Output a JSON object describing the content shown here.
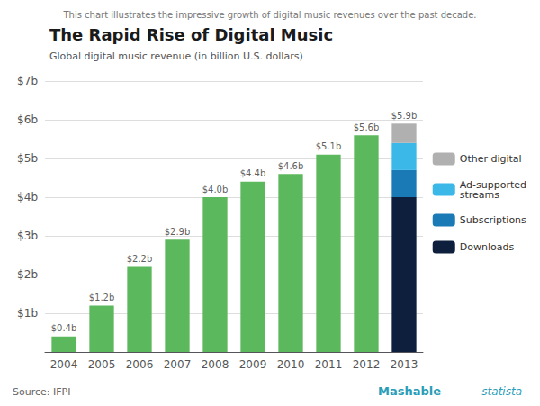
{
  "chart_data": {
    "type": "bar",
    "title": "The Rapid Rise of Digital Music",
    "subtitle": "This chart illustrates the impressive growth of digital music revenues over the past decade.",
    "ylabel": "Global digital music revenue (in billion U.S. dollars)",
    "categories": [
      "2004",
      "2005",
      "2006",
      "2007",
      "2008",
      "2009",
      "2010",
      "2011",
      "2012",
      "2013"
    ],
    "series": [
      {
        "color": "#5cb85c",
        "values": [
          0.4,
          1.2,
          2.2,
          2.9,
          4.0,
          4.4,
          4.6,
          5.1,
          5.6,
          null
        ]
      },
      {
        "name": "Downloads",
        "color": "#0d1f3c",
        "values": [
          null,
          null,
          null,
          null,
          null,
          null,
          null,
          null,
          null,
          4.0
        ]
      },
      {
        "name": "Subscriptions",
        "color": "#1a7ab5",
        "values": [
          null,
          null,
          null,
          null,
          null,
          null,
          null,
          null,
          null,
          0.7
        ]
      },
      {
        "name": "Ad-supported\nstreams",
        "color": "#3bb8e8",
        "values": [
          null,
          null,
          null,
          null,
          null,
          null,
          null,
          null,
          null,
          0.7
        ]
      },
      {
        "name": "Other digital",
        "color": "#b0b0b0",
        "values": [
          null,
          null,
          null,
          null,
          null,
          null,
          null,
          null,
          null,
          0.5
        ]
      }
    ],
    "stacked": true,
    "totals": [
      0.4,
      1.2,
      2.2,
      2.9,
      4.0,
      4.4,
      4.6,
      5.1,
      5.6,
      5.9
    ],
    "total_labels": [
      "$0.4b",
      "$1.2b",
      "$2.2b",
      "$2.9b",
      "$4.0b",
      "$4.4b",
      "$4.6b",
      "$5.1b",
      "$5.6b",
      "$5.9b"
    ],
    "data_labels": true,
    "ylim": [
      0,
      7
    ],
    "yticks": [
      {
        "value": 0,
        "label": null
      },
      {
        "value": 1,
        "label": "$1b"
      },
      {
        "value": 2,
        "label": "$2b"
      },
      {
        "value": 3,
        "label": "$3b"
      },
      {
        "value": 4,
        "label": "$4b"
      },
      {
        "value": 5,
        "label": "$5b"
      },
      {
        "value": 6,
        "label": "$6b"
      },
      {
        "value": 7,
        "label": "$7b"
      }
    ],
    "grid": true,
    "legend": "right",
    "annotations": [
      "Source: IFPI",
      "Mashable",
      "statista"
    ]
  }
}
